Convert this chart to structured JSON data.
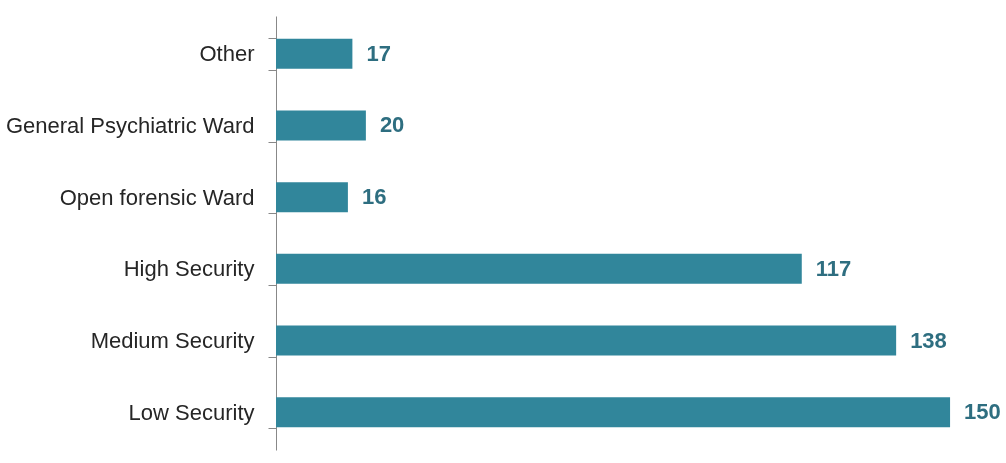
{
  "chart_data": {
    "type": "bar",
    "orientation": "horizontal",
    "categories": [
      "Other",
      "General Psychiatric Ward",
      "Open forensic Ward",
      "High Security",
      "Medium Security",
      "Low Security"
    ],
    "values": [
      17,
      20,
      16,
      117,
      138,
      150
    ],
    "color": "#31869b",
    "data_labels": true
  }
}
